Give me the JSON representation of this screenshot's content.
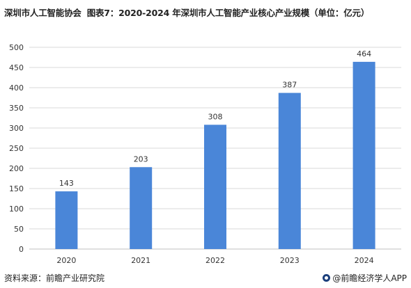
{
  "header": {
    "source_org": "深圳市人工智能协会",
    "title": "图表7：2020-2024 年深圳市人工智能产业核心产业规模（单位：亿元）"
  },
  "footer": {
    "source": "资料来源：前瞻产业研究院",
    "brand": "@前瞻经济学人APP"
  },
  "colors": {
    "bar": "#4a86d8",
    "grid": "#d9d9d9",
    "axis": "#bfbfbf"
  },
  "chart_data": {
    "type": "bar",
    "categories": [
      "2020",
      "2021",
      "2022",
      "2023",
      "2024"
    ],
    "values": [
      143,
      203,
      308,
      387,
      464
    ],
    "yticks": [
      0,
      50,
      100,
      150,
      200,
      250,
      300,
      350,
      400,
      450,
      500
    ],
    "ylim": [
      0,
      500
    ],
    "grid": true,
    "legend": "none"
  }
}
